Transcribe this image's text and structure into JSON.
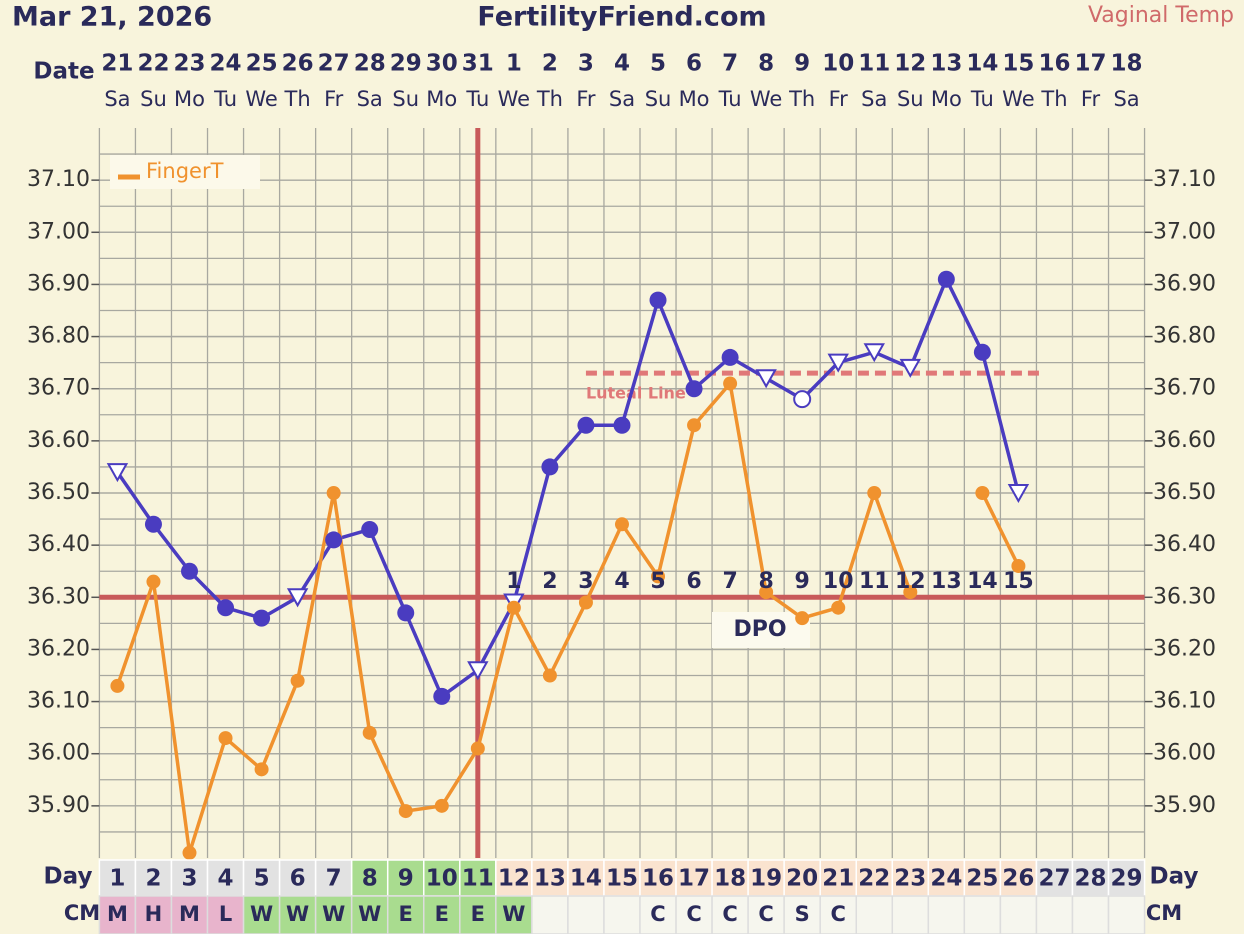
{
  "chart_data": {
    "type": "line",
    "title": "FertilityFriend.com",
    "date": "Mar 21, 2026",
    "date_label": "Date",
    "categories": [
      "21",
      "22",
      "23",
      "24",
      "25",
      "26",
      "27",
      "28",
      "29",
      "30",
      "31",
      "1",
      "2",
      "3",
      "4",
      "5",
      "6",
      "7",
      "8",
      "9",
      "10",
      "11",
      "12",
      "13",
      "14",
      "15",
      "16",
      "17",
      "18"
    ],
    "weekdays": [
      "Sa",
      "Su",
      "Mo",
      "Tu",
      "We",
      "Th",
      "Fr",
      "Sa",
      "Su",
      "Mo",
      "Tu",
      "We",
      "Th",
      "Fr",
      "Sa",
      "Su",
      "Mo",
      "Tu",
      "We",
      "Th",
      "Fr",
      "Sa",
      "Su",
      "Mo",
      "Tu",
      "We",
      "Th",
      "Fr",
      "Sa"
    ],
    "day_label": "Day",
    "days": [
      1,
      2,
      3,
      4,
      5,
      6,
      7,
      8,
      9,
      10,
      11,
      12,
      13,
      14,
      15,
      16,
      17,
      18,
      19,
      20,
      21,
      22,
      23,
      24,
      25,
      26,
      27,
      28,
      29
    ],
    "day_colors": [
      "#e2e2e2",
      "#e2e2e2",
      "#e2e2e2",
      "#e2e2e2",
      "#e2e2e2",
      "#e2e2e2",
      "#e2e2e2",
      "#a9dc8f",
      "#a9dc8f",
      "#a9dc8f",
      "#a9dc8f",
      "#fae3cf",
      "#fae3cf",
      "#fae3cf",
      "#fae3cf",
      "#fae3cf",
      "#fae3cf",
      "#fae3cf",
      "#fae3cf",
      "#fae3cf",
      "#fae3cf",
      "#fae3cf",
      "#fae3cf",
      "#fae3cf",
      "#fae3cf",
      "#fae3cf",
      "#e2e2e2",
      "#e2e2e2",
      "#e2e2e2"
    ],
    "cm_label": "CM",
    "cm": [
      "M",
      "H",
      "M",
      "L",
      "W",
      "W",
      "W",
      "W",
      "E",
      "E",
      "E",
      "W",
      null,
      null,
      null,
      "C",
      "C",
      "C",
      "C",
      "S",
      "C",
      null,
      null,
      null,
      null,
      null,
      null,
      null,
      null
    ],
    "cm_colors": [
      "#e8b4cc",
      "#e8b4cc",
      "#e8b4cc",
      "#e8b4cc",
      "#a9dc8f",
      "#a9dc8f",
      "#a9dc8f",
      "#a9dc8f",
      "#a9dc8f",
      "#a9dc8f",
      "#a9dc8f",
      "#a9dc8f",
      "#f6f6ee",
      "#f6f6ee",
      "#f6f6ee",
      "#f6f6ee",
      "#f6f6ee",
      "#f6f6ee",
      "#f6f6ee",
      "#f6f6ee",
      "#f6f6ee",
      "#f6f6ee",
      "#f6f6ee",
      "#f6f6ee",
      "#f6f6ee",
      "#f6f6ee",
      "#f6f6ee",
      "#f6f6ee",
      "#f6f6ee"
    ],
    "series": [
      {
        "name": "Vaginal Temp",
        "color": "#4a3cc0",
        "values": [
          36.54,
          36.44,
          36.35,
          36.28,
          36.26,
          36.3,
          36.41,
          36.43,
          36.27,
          36.11,
          36.16,
          36.29,
          36.55,
          36.63,
          36.63,
          36.87,
          36.7,
          36.76,
          36.72,
          36.68,
          36.75,
          36.77,
          36.74,
          36.91,
          36.77,
          36.5,
          null,
          null,
          null
        ],
        "markers": [
          "triangle",
          "circle",
          "circle",
          "circle",
          "circle",
          "triangle",
          "circle",
          "circle",
          "circle",
          "circle",
          "triangle",
          "triangle",
          "circle",
          "circle",
          "circle",
          "circle",
          "circle",
          "circle",
          "triangle",
          "open-circle",
          "triangle",
          "triangle",
          "triangle",
          "circle",
          "circle",
          "triangle",
          null,
          null,
          null
        ]
      },
      {
        "name": "FingerT",
        "color": "#f0922e",
        "values": [
          36.13,
          36.33,
          35.81,
          36.03,
          35.97,
          36.14,
          36.5,
          36.04,
          35.89,
          35.9,
          36.01,
          36.28,
          36.15,
          36.29,
          36.44,
          36.34,
          36.63,
          36.71,
          36.31,
          36.26,
          36.28,
          36.5,
          36.31,
          null,
          36.5,
          36.36,
          null,
          null,
          null
        ]
      }
    ],
    "coverline": 36.3,
    "ovulation_day": 11,
    "luteal_line": {
      "label": "Luteal Line",
      "value": 36.73,
      "from_day": 14,
      "to_day": 26
    },
    "dpo_label": "DPO",
    "dpo": [
      null,
      null,
      null,
      null,
      null,
      null,
      null,
      null,
      null,
      null,
      null,
      1,
      2,
      3,
      4,
      5,
      6,
      7,
      8,
      9,
      10,
      11,
      12,
      13,
      14,
      15,
      null,
      null,
      null
    ],
    "ylim": [
      35.8,
      37.2
    ],
    "yticks": [
      {
        "value": 35.9,
        "label": "35.90"
      },
      {
        "value": 36.0,
        "label": "36.00"
      },
      {
        "value": 36.1,
        "label": "36.10"
      },
      {
        "value": 36.2,
        "label": "36.20"
      },
      {
        "value": 36.3,
        "label": "36.30"
      },
      {
        "value": 36.4,
        "label": "36.40"
      },
      {
        "value": 36.5,
        "label": "36.50"
      },
      {
        "value": 36.6,
        "label": "36.60"
      },
      {
        "value": 36.7,
        "label": "36.70"
      },
      {
        "value": 36.8,
        "label": "36.80"
      },
      {
        "value": 36.9,
        "label": "36.90"
      },
      {
        "value": 37.0,
        "label": "37.00"
      },
      {
        "value": 37.1,
        "label": "37.10"
      }
    ],
    "ygrid_step": 0.05,
    "grid": true
  }
}
